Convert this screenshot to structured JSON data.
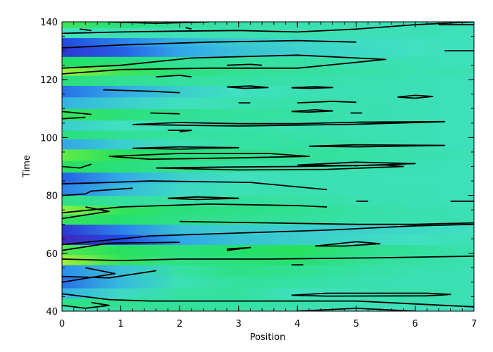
{
  "chart_data": {
    "type": "heatmap",
    "title": "",
    "xlabel": "Position",
    "ylabel": "Time",
    "xlim": [
      0,
      7
    ],
    "ylim": [
      40,
      140
    ],
    "x_ticks": [
      "0",
      "1",
      "2",
      "3",
      "4",
      "5",
      "6",
      "7"
    ],
    "y_ticks": [
      "40",
      "60",
      "80",
      "100",
      "120",
      "140"
    ],
    "colormap": [
      "#5020b0",
      "#2040e0",
      "#30a0f0",
      "#40e0c0",
      "#20e060",
      "#80f040",
      "#f0f020"
    ],
    "contour_color": "#000000",
    "grid": false,
    "legend": "none",
    "bands": [
      {
        "t": 40,
        "v": [
          0.5,
          0.55,
          0.58,
          0.55,
          0.52,
          0.5,
          0.5,
          0.5
        ]
      },
      {
        "t": 43,
        "v": [
          0.6,
          0.58,
          0.56,
          0.55,
          0.54,
          0.52,
          0.52,
          0.52
        ]
      },
      {
        "t": 46,
        "v": [
          0.38,
          0.48,
          0.55,
          0.56,
          0.5,
          0.52,
          0.54,
          0.52
        ]
      },
      {
        "t": 50,
        "v": [
          0.25,
          0.4,
          0.52,
          0.56,
          0.55,
          0.53,
          0.52,
          0.52
        ]
      },
      {
        "t": 54,
        "v": [
          0.3,
          0.42,
          0.55,
          0.6,
          0.58,
          0.55,
          0.53,
          0.52
        ]
      },
      {
        "t": 58,
        "v": [
          0.88,
          0.7,
          0.6,
          0.62,
          0.64,
          0.58,
          0.55,
          0.53
        ]
      },
      {
        "t": 61,
        "v": [
          0.75,
          0.68,
          0.62,
          0.65,
          0.68,
          0.6,
          0.56,
          0.53
        ]
      },
      {
        "t": 65,
        "v": [
          0.05,
          0.18,
          0.35,
          0.42,
          0.45,
          0.48,
          0.5,
          0.52
        ]
      },
      {
        "t": 68,
        "v": [
          0.12,
          0.28,
          0.42,
          0.45,
          0.45,
          0.46,
          0.48,
          0.5
        ]
      },
      {
        "t": 72,
        "v": [
          0.7,
          0.64,
          0.6,
          0.58,
          0.56,
          0.54,
          0.53,
          0.52
        ]
      },
      {
        "t": 75,
        "v": [
          0.85,
          0.7,
          0.62,
          0.6,
          0.58,
          0.55,
          0.53,
          0.52
        ]
      },
      {
        "t": 78,
        "v": [
          0.6,
          0.56,
          0.55,
          0.56,
          0.55,
          0.53,
          0.52,
          0.51
        ]
      },
      {
        "t": 82,
        "v": [
          0.28,
          0.4,
          0.48,
          0.52,
          0.53,
          0.52,
          0.52,
          0.51
        ]
      },
      {
        "t": 86,
        "v": [
          0.22,
          0.36,
          0.46,
          0.5,
          0.52,
          0.52,
          0.51,
          0.51
        ]
      },
      {
        "t": 90,
        "v": [
          0.68,
          0.62,
          0.58,
          0.55,
          0.54,
          0.53,
          0.52,
          0.51
        ]
      },
      {
        "t": 94,
        "v": [
          0.78,
          0.68,
          0.62,
          0.6,
          0.57,
          0.55,
          0.53,
          0.52
        ]
      },
      {
        "t": 98,
        "v": [
          0.35,
          0.45,
          0.52,
          0.55,
          0.55,
          0.54,
          0.52,
          0.51
        ]
      },
      {
        "t": 101,
        "v": [
          0.62,
          0.58,
          0.56,
          0.55,
          0.54,
          0.53,
          0.52,
          0.51
        ]
      },
      {
        "t": 104,
        "v": [
          0.45,
          0.5,
          0.53,
          0.54,
          0.53,
          0.52,
          0.52,
          0.51
        ]
      },
      {
        "t": 108,
        "v": [
          0.7,
          0.62,
          0.58,
          0.56,
          0.55,
          0.53,
          0.52,
          0.51
        ]
      },
      {
        "t": 112,
        "v": [
          0.38,
          0.45,
          0.5,
          0.53,
          0.54,
          0.53,
          0.52,
          0.51
        ]
      },
      {
        "t": 116,
        "v": [
          0.25,
          0.36,
          0.45,
          0.5,
          0.52,
          0.52,
          0.52,
          0.51
        ]
      },
      {
        "t": 120,
        "v": [
          0.62,
          0.58,
          0.56,
          0.55,
          0.54,
          0.53,
          0.52,
          0.51
        ]
      },
      {
        "t": 123,
        "v": [
          0.88,
          0.72,
          0.62,
          0.58,
          0.56,
          0.54,
          0.53,
          0.52
        ]
      },
      {
        "t": 126,
        "v": [
          0.66,
          0.62,
          0.58,
          0.56,
          0.55,
          0.53,
          0.52,
          0.51
        ]
      },
      {
        "t": 130,
        "v": [
          0.12,
          0.22,
          0.35,
          0.42,
          0.46,
          0.48,
          0.5,
          0.51
        ]
      },
      {
        "t": 133,
        "v": [
          0.18,
          0.28,
          0.38,
          0.44,
          0.47,
          0.49,
          0.5,
          0.51
        ]
      },
      {
        "t": 136,
        "v": [
          0.5,
          0.52,
          0.52,
          0.53,
          0.53,
          0.52,
          0.52,
          0.51
        ]
      },
      {
        "t": 140,
        "v": [
          0.72,
          0.62,
          0.56,
          0.54,
          0.53,
          0.52,
          0.52,
          0.51
        ]
      }
    ],
    "contours": [
      {
        "points": [
          [
            0,
            46
          ],
          [
            0.8,
            44
          ],
          [
            1.5,
            43.5
          ],
          [
            3,
            43.5
          ],
          [
            5,
            43.5
          ],
          [
            6.5,
            42
          ],
          [
            7,
            41.5
          ]
        ]
      },
      {
        "points": [
          [
            0,
            42
          ],
          [
            0.4,
            41
          ],
          [
            0.8,
            42
          ],
          [
            0.5,
            43
          ]
        ]
      },
      {
        "points": [
          [
            3.9,
            45.5
          ],
          [
            4.5,
            46.2
          ],
          [
            6.2,
            46.2
          ],
          [
            6.6,
            45.8
          ],
          [
            6.2,
            45.3
          ],
          [
            4.5,
            45.2
          ],
          [
            3.9,
            45.5
          ]
        ]
      },
      {
        "points": [
          [
            4,
            40
          ],
          [
            5,
            41
          ],
          [
            6,
            40
          ]
        ]
      },
      {
        "points": [
          [
            0,
            50
          ],
          [
            0.9,
            53
          ],
          [
            0.4,
            55
          ]
        ]
      },
      {
        "points": [
          [
            0,
            52
          ],
          [
            0.8,
            51.5
          ],
          [
            1.6,
            54
          ]
        ]
      },
      {
        "points": [
          [
            0,
            58
          ],
          [
            1,
            57.5
          ],
          [
            2,
            58
          ],
          [
            3.5,
            58
          ],
          [
            5.5,
            58.5
          ],
          [
            7,
            59
          ]
        ]
      },
      {
        "points": [
          [
            0,
            63
          ],
          [
            1.5,
            66
          ],
          [
            3,
            67
          ],
          [
            4.5,
            68
          ],
          [
            6,
            69.5
          ],
          [
            7,
            70
          ]
        ]
      },
      {
        "points": [
          [
            0,
            61
          ],
          [
            0.8,
            63.5
          ],
          [
            2,
            63.8
          ]
        ]
      },
      {
        "points": [
          [
            2,
            71
          ],
          [
            3.5,
            70.5
          ],
          [
            5,
            70
          ],
          [
            6,
            70
          ],
          [
            7,
            70.5
          ]
        ]
      },
      {
        "points": [
          [
            2.8,
            61
          ],
          [
            3.2,
            62
          ],
          [
            2.8,
            61.5
          ]
        ]
      },
      {
        "points": [
          [
            4.3,
            62.5
          ],
          [
            5,
            64
          ],
          [
            5.4,
            63.3
          ],
          [
            4.8,
            62.5
          ],
          [
            4.3,
            62.5
          ]
        ]
      },
      {
        "points": [
          [
            3.9,
            56
          ],
          [
            4.1,
            56
          ]
        ]
      },
      {
        "points": [
          [
            0,
            74
          ],
          [
            1,
            76
          ],
          [
            2.5,
            77
          ],
          [
            4,
            76.5
          ],
          [
            4.5,
            76
          ]
        ]
      },
      {
        "points": [
          [
            1.8,
            79
          ],
          [
            2.3,
            79.5
          ],
          [
            3,
            79
          ],
          [
            2.3,
            78.6
          ],
          [
            1.8,
            79
          ]
        ]
      },
      {
        "points": [
          [
            0,
            72
          ],
          [
            0.8,
            74.5
          ],
          [
            0.4,
            76
          ]
        ]
      },
      {
        "points": [
          [
            5,
            78
          ],
          [
            5.2,
            78
          ]
        ]
      },
      {
        "points": [
          [
            6.6,
            78
          ],
          [
            7,
            78
          ]
        ]
      },
      {
        "points": [
          [
            0,
            84
          ],
          [
            0.8,
            84.5
          ],
          [
            1.5,
            85
          ],
          [
            3.2,
            84.5
          ],
          [
            4.5,
            82
          ]
        ]
      },
      {
        "points": [
          [
            0,
            80
          ],
          [
            0.4,
            80.5
          ],
          [
            0.5,
            81.5
          ],
          [
            1.2,
            82.5
          ]
        ]
      },
      {
        "points": [
          [
            0.8,
            93.5
          ],
          [
            1.5,
            92.5
          ],
          [
            3,
            93
          ],
          [
            4.2,
            93.5
          ],
          [
            3.5,
            94.5
          ],
          [
            2,
            94.5
          ],
          [
            0.8,
            93.5
          ]
        ]
      },
      {
        "points": [
          [
            1.2,
            96.3
          ],
          [
            2,
            96.8
          ],
          [
            3,
            96.5
          ],
          [
            2,
            96
          ],
          [
            1.2,
            96.3
          ]
        ]
      },
      {
        "points": [
          [
            1.6,
            89.5
          ],
          [
            2.8,
            89.8
          ],
          [
            4,
            90
          ],
          [
            5.5,
            90.5
          ],
          [
            5.8,
            90
          ],
          [
            4.5,
            89
          ],
          [
            3,
            88.8
          ],
          [
            1.6,
            89.5
          ]
        ]
      },
      {
        "points": [
          [
            4,
            90.5
          ],
          [
            5,
            91.5
          ],
          [
            6,
            91
          ],
          [
            5,
            90.3
          ],
          [
            4,
            90.5
          ]
        ]
      },
      {
        "points": [
          [
            4.2,
            97
          ],
          [
            5,
            97.5
          ],
          [
            6.5,
            97.3
          ],
          [
            5,
            96.8
          ],
          [
            4.2,
            97
          ]
        ]
      },
      {
        "points": [
          [
            0,
            90
          ],
          [
            0.3,
            89.5
          ],
          [
            0.5,
            90.8
          ]
        ]
      },
      {
        "points": [
          [
            1.2,
            104.5
          ],
          [
            2,
            105.2
          ],
          [
            3,
            104.8
          ],
          [
            4,
            104.8
          ],
          [
            5,
            105.3
          ],
          [
            6.5,
            105.5
          ],
          [
            5,
            104.6
          ],
          [
            3,
            104
          ],
          [
            1.2,
            104.5
          ]
        ]
      },
      {
        "points": [
          [
            1.8,
            102.5
          ],
          [
            2.2,
            102.5
          ],
          [
            2,
            102
          ]
        ]
      },
      {
        "points": [
          [
            0,
            106.5
          ],
          [
            0.4,
            107
          ]
        ]
      },
      {
        "points": [
          [
            0,
            109
          ],
          [
            0.5,
            108
          ]
        ]
      },
      {
        "points": [
          [
            1.5,
            108.5
          ],
          [
            2,
            108.2
          ]
        ]
      },
      {
        "points": [
          [
            3.9,
            109
          ],
          [
            4.3,
            109.6
          ],
          [
            4.6,
            109.2
          ],
          [
            4.2,
            108.8
          ],
          [
            3.9,
            109
          ]
        ]
      },
      {
        "points": [
          [
            4,
            112
          ],
          [
            4.6,
            112.5
          ],
          [
            5,
            112.2
          ]
        ]
      },
      {
        "points": [
          [
            4.9,
            108.5
          ],
          [
            5.1,
            108.5
          ]
        ]
      },
      {
        "points": [
          [
            3,
            112
          ],
          [
            3.2,
            112
          ]
        ]
      },
      {
        "points": [
          [
            2.8,
            117.5
          ],
          [
            3.2,
            117.8
          ],
          [
            3.5,
            117.3
          ],
          [
            3.1,
            117
          ],
          [
            2.8,
            117.5
          ]
        ]
      },
      {
        "points": [
          [
            3.9,
            117.2
          ],
          [
            4.3,
            117.6
          ],
          [
            4.6,
            117.3
          ],
          [
            4.2,
            117
          ],
          [
            3.9,
            117.2
          ]
        ]
      },
      {
        "points": [
          [
            5.7,
            114
          ],
          [
            6,
            114.6
          ],
          [
            6.3,
            114.2
          ],
          [
            6,
            113.6
          ],
          [
            5.7,
            114
          ]
        ]
      },
      {
        "points": [
          [
            0.7,
            116.5
          ],
          [
            1.5,
            116
          ],
          [
            2,
            115.5
          ]
        ]
      },
      {
        "points": [
          [
            0,
            122
          ],
          [
            1,
            123.5
          ],
          [
            2.5,
            124
          ],
          [
            4,
            124
          ],
          [
            5.5,
            127
          ],
          [
            4,
            128.5
          ],
          [
            2.2,
            127.5
          ],
          [
            1,
            125
          ],
          [
            0,
            124
          ]
        ]
      },
      {
        "points": [
          [
            1.6,
            121
          ],
          [
            2,
            121.5
          ],
          [
            2.2,
            121
          ]
        ]
      },
      {
        "points": [
          [
            2.8,
            125
          ],
          [
            3.2,
            125.3
          ],
          [
            3.4,
            125
          ]
        ]
      },
      {
        "points": [
          [
            0,
            136
          ],
          [
            1,
            136.5
          ],
          [
            2,
            136.8
          ],
          [
            3,
            137
          ],
          [
            4,
            136.5
          ],
          [
            5,
            137.5
          ],
          [
            6,
            139
          ],
          [
            7,
            140
          ]
        ]
      },
      {
        "points": [
          [
            0,
            131
          ],
          [
            1,
            132
          ],
          [
            2.5,
            133
          ],
          [
            4,
            133.5
          ],
          [
            5,
            133
          ]
        ]
      },
      {
        "points": [
          [
            0.3,
            137.5
          ],
          [
            0.5,
            137
          ]
        ]
      },
      {
        "points": [
          [
            2.1,
            138
          ],
          [
            2.2,
            137.5
          ]
        ]
      },
      {
        "points": [
          [
            6.4,
            139
          ],
          [
            7,
            139
          ]
        ]
      },
      {
        "points": [
          [
            6.5,
            130
          ],
          [
            7,
            130
          ]
        ]
      },
      {
        "points": [
          [
            0.8,
            140
          ],
          [
            1.6,
            139.5
          ],
          [
            2.5,
            140
          ]
        ]
      }
    ]
  }
}
